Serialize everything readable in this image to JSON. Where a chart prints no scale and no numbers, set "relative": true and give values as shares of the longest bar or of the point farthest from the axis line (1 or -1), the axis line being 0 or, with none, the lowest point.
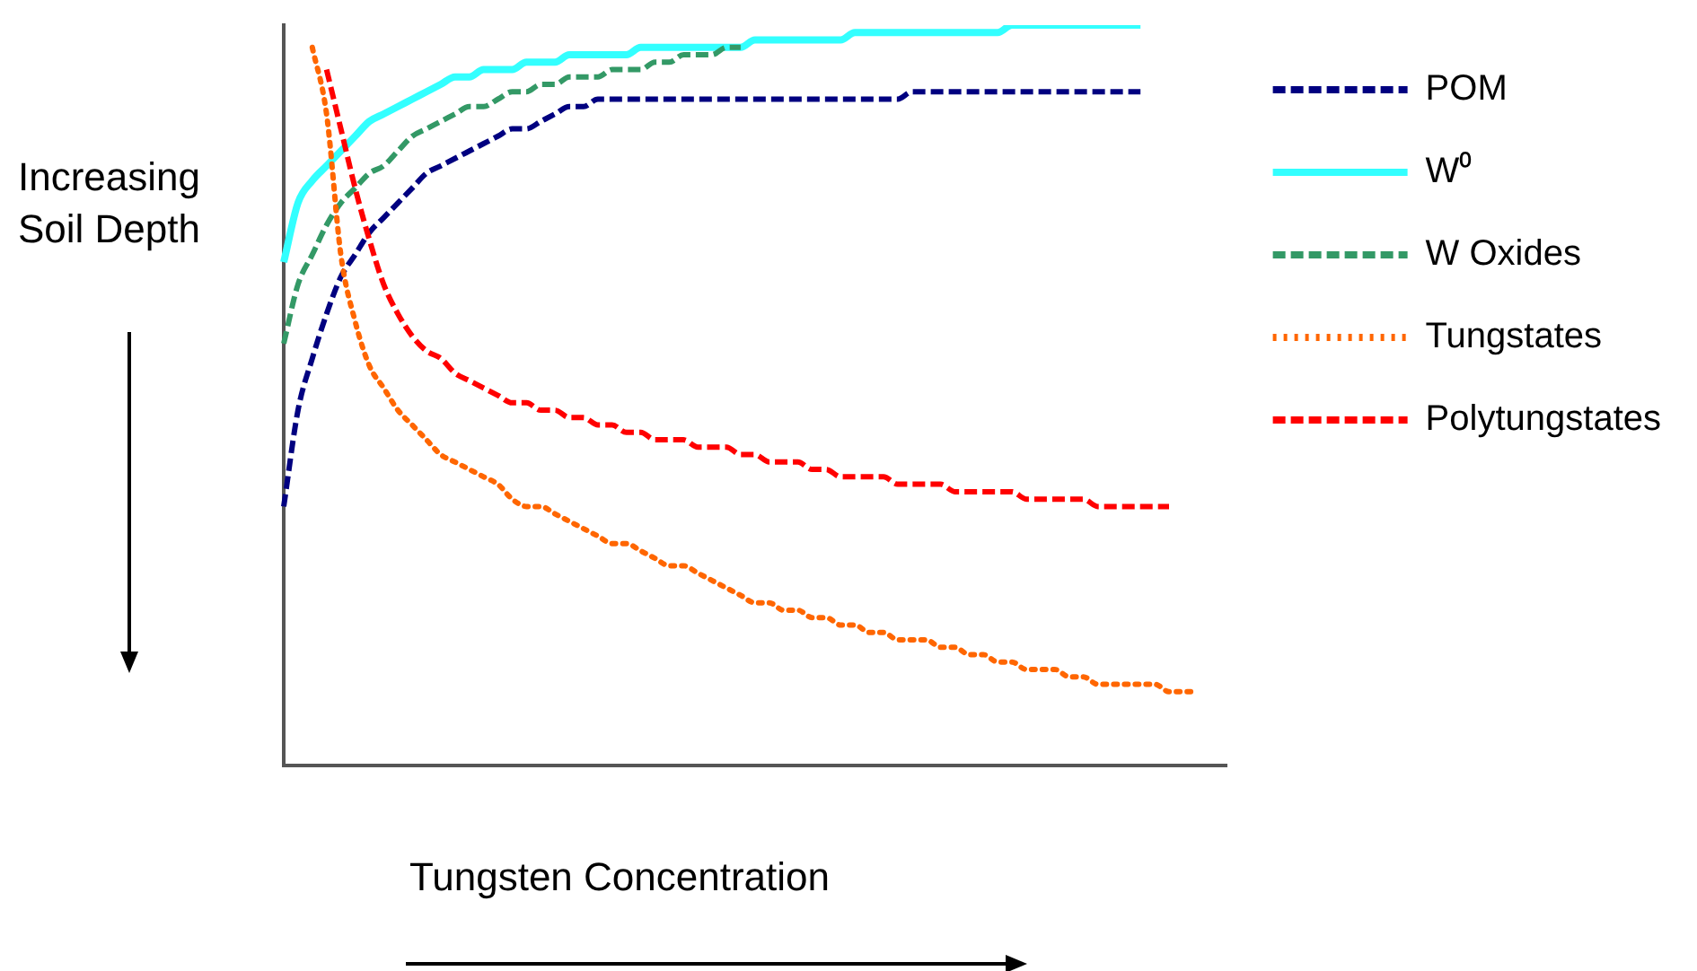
{
  "chart_data": {
    "type": "line",
    "relative": true,
    "xlabel": "Tungsten Concentration",
    "ylabel": "Increasing Soil Depth",
    "legend": "right",
    "grid": false,
    "marker": "none",
    "categories": [
      null,
      null,
      null,
      null,
      null,
      null,
      null,
      null,
      null,
      null,
      null,
      null,
      null,
      null,
      null,
      null,
      null,
      null,
      null,
      null,
      null,
      null,
      null,
      null,
      null,
      null,
      null,
      null,
      null,
      null,
      null,
      null,
      null,
      null,
      null,
      null,
      null,
      null,
      null,
      null,
      null,
      null,
      null,
      null,
      null,
      null,
      null,
      null,
      null,
      null,
      null,
      null,
      null,
      null,
      null,
      null,
      null,
      null,
      null,
      null,
      null,
      null,
      null,
      null,
      null,
      null,
      null
    ],
    "series": [
      {
        "name": "POM",
        "color": "#000080",
        "line_style": "dashed",
        "values": [
          0.35,
          0.48,
          0.55,
          0.61,
          0.66,
          0.69,
          0.72,
          0.74,
          0.76,
          0.78,
          0.8,
          0.81,
          0.82,
          0.83,
          0.84,
          0.85,
          0.86,
          0.86,
          0.87,
          0.88,
          0.89,
          0.89,
          0.9,
          0.9,
          0.9,
          0.9,
          0.9,
          0.9,
          0.9,
          0.9,
          0.9,
          0.9,
          0.9,
          0.9,
          0.9,
          0.9,
          0.9,
          0.9,
          0.9,
          0.9,
          0.9,
          0.9,
          0.9,
          0.9,
          0.91,
          0.91,
          0.91,
          0.91,
          0.91,
          0.91,
          0.91,
          0.91,
          0.91,
          0.91,
          0.91,
          0.91,
          0.91,
          0.91,
          0.91,
          0.91,
          0.91,
          null,
          null,
          null,
          null,
          null,
          null
        ]
      },
      {
        "name": "W⁰",
        "color": "#33ffff",
        "line_style": "solid",
        "values": [
          0.68,
          0.76,
          0.79,
          0.81,
          0.83,
          0.85,
          0.87,
          0.88,
          0.89,
          0.9,
          0.91,
          0.92,
          0.93,
          0.93,
          0.94,
          0.94,
          0.94,
          0.95,
          0.95,
          0.95,
          0.96,
          0.96,
          0.96,
          0.96,
          0.96,
          0.97,
          0.97,
          0.97,
          0.97,
          0.97,
          0.97,
          0.97,
          0.97,
          0.98,
          0.98,
          0.98,
          0.98,
          0.98,
          0.98,
          0.98,
          0.99,
          0.99,
          0.99,
          0.99,
          0.99,
          0.99,
          0.99,
          0.99,
          0.99,
          0.99,
          0.99,
          1,
          1,
          1,
          1,
          1,
          1,
          1,
          1,
          1,
          1,
          null,
          null,
          null,
          null,
          null,
          null
        ]
      },
      {
        "name": "W Oxides",
        "color": "#339966",
        "line_style": "dashed",
        "values": [
          0.57,
          0.65,
          0.69,
          0.73,
          0.76,
          0.78,
          0.8,
          0.81,
          0.83,
          0.85,
          0.86,
          0.87,
          0.88,
          0.89,
          0.89,
          0.9,
          0.91,
          0.91,
          0.92,
          0.92,
          0.93,
          0.93,
          0.93,
          0.94,
          0.94,
          0.94,
          0.95,
          0.95,
          0.96,
          0.96,
          0.96,
          0.97,
          0.97,
          null,
          null,
          null,
          null,
          null,
          null,
          null,
          null,
          null,
          null,
          null,
          null,
          null,
          null,
          null,
          null,
          null,
          null,
          null,
          null,
          null,
          null,
          null,
          null,
          null,
          null,
          null,
          null,
          null,
          null,
          null,
          null,
          null,
          null
        ]
      },
      {
        "name": "Tungstates",
        "color": "#ff6600",
        "line_style": "dotted",
        "values": [
          null,
          null,
          0.97,
          0.88,
          0.69,
          0.6,
          0.54,
          0.51,
          0.48,
          0.46,
          0.44,
          0.42,
          0.41,
          0.4,
          0.39,
          0.38,
          0.36,
          0.35,
          0.35,
          0.34,
          0.33,
          0.32,
          0.31,
          0.3,
          0.3,
          0.29,
          0.28,
          0.27,
          0.27,
          0.26,
          0.25,
          0.24,
          0.23,
          0.22,
          0.22,
          0.21,
          0.21,
          0.2,
          0.2,
          0.19,
          0.19,
          0.18,
          0.18,
          0.17,
          0.17,
          0.17,
          0.16,
          0.16,
          0.15,
          0.15,
          0.14,
          0.14,
          0.13,
          0.13,
          0.13,
          0.12,
          0.12,
          0.11,
          0.11,
          0.11,
          0.11,
          0.11,
          0.1,
          0.1,
          0.1,
          null,
          null
        ]
      },
      {
        "name": "Polytungstates",
        "color": "#ff0000",
        "line_style": "dashed",
        "values": [
          null,
          null,
          null,
          0.94,
          0.86,
          0.78,
          0.71,
          0.65,
          0.61,
          0.58,
          0.56,
          0.55,
          0.53,
          0.52,
          0.51,
          0.5,
          0.49,
          0.49,
          0.48,
          0.48,
          0.47,
          0.47,
          0.46,
          0.46,
          0.45,
          0.45,
          0.44,
          0.44,
          0.44,
          0.43,
          0.43,
          0.43,
          0.42,
          0.42,
          0.41,
          0.41,
          0.41,
          0.4,
          0.4,
          0.39,
          0.39,
          0.39,
          0.39,
          0.38,
          0.38,
          0.38,
          0.38,
          0.37,
          0.37,
          0.37,
          0.37,
          0.37,
          0.36,
          0.36,
          0.36,
          0.36,
          0.36,
          0.35,
          0.35,
          0.35,
          0.35,
          0.35,
          0.35,
          null,
          null,
          null,
          null
        ]
      }
    ]
  }
}
